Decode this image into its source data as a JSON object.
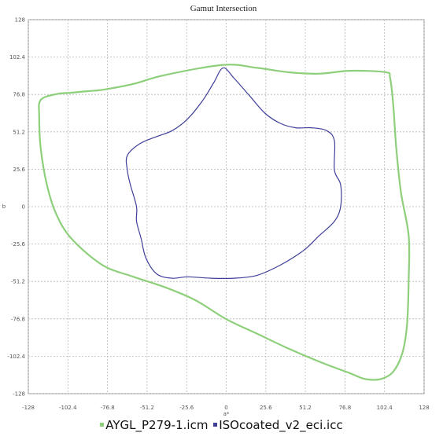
{
  "chart_data": {
    "type": "line",
    "title": "Gamut Intersection",
    "xlabel": "a*",
    "ylabel": "b",
    "xlim": [
      -128,
      128
    ],
    "ylim": [
      -128,
      128
    ],
    "ticks": [
      "-128",
      "-102.4",
      "-76.8",
      "-51.2",
      "-25.6",
      "0",
      "25.6",
      "51.2",
      "76.8",
      "102.4",
      "128"
    ],
    "tick_values": [
      -128,
      -102.4,
      -76.8,
      -51.2,
      -25.6,
      0,
      25.6,
      51.2,
      76.8,
      102.4,
      128
    ],
    "grid": true,
    "legend_position": "bottom",
    "series": [
      {
        "name": "AYGL_P279-1.icm",
        "color": "#8dcf7a",
        "x": [
          -2,
          20,
          40,
          60,
          80,
          103,
          106,
          108,
          110,
          113,
          118,
          118,
          117,
          114,
          108,
          100,
          90,
          80,
          60,
          40,
          20,
          0,
          -20,
          -40,
          -60,
          -80,
          -100,
          -110,
          -116,
          -120,
          -121,
          -120,
          -110,
          -100,
          -90,
          -80,
          -60,
          -40,
          -2
        ],
        "y": [
          97,
          95,
          92,
          91,
          93,
          92,
          88,
          70,
          40,
          10,
          -20,
          -50,
          -80,
          -100,
          -113,
          -118,
          -118,
          -114,
          -106,
          -97,
          -87,
          -77,
          -64,
          -55,
          -48,
          -40,
          -22,
          -5,
          15,
          40,
          62,
          73,
          77,
          78,
          79,
          80,
          84,
          90,
          97
        ],
        "closed": true
      },
      {
        "name": "ISOcoated_v2_eci.icc",
        "color": "#3f3f9a",
        "x": [
          -2,
          5,
          15,
          25,
          35,
          45,
          55,
          65,
          70,
          70,
          74,
          74,
          70,
          60,
          50,
          35,
          20,
          5,
          -10,
          -25,
          -35,
          -45,
          -52,
          -55,
          -58,
          -58,
          -62,
          -64,
          -64,
          -56,
          -45,
          -35,
          -25,
          -15,
          -8,
          -2
        ],
        "y": [
          95,
          88,
          76,
          64,
          57,
          54,
          54,
          52,
          45,
          25,
          15,
          0,
          -10,
          -20,
          -30,
          -40,
          -47,
          -49,
          -49,
          -48,
          -49,
          -46,
          -35,
          -22,
          -10,
          0,
          15,
          25,
          35,
          43,
          48,
          52,
          60,
          73,
          85,
          95
        ],
        "closed": true
      }
    ]
  }
}
